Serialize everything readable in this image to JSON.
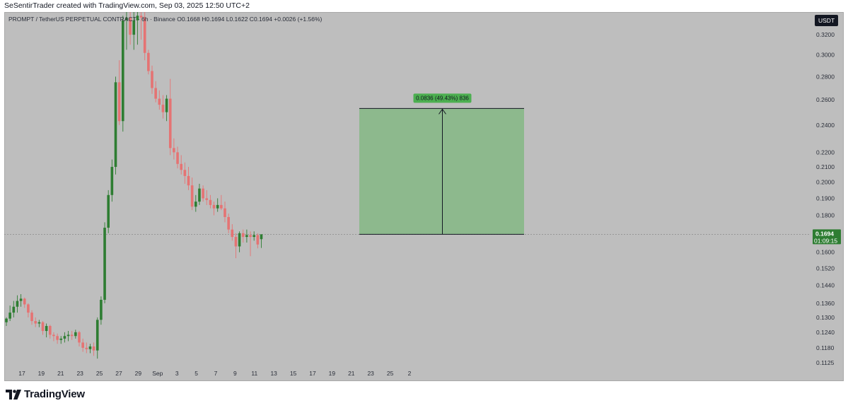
{
  "header": {
    "credit": "SeSentirTrader created with TradingView.com, Sep 03, 2025 12:50 UTC+2"
  },
  "legend": {
    "symbol": "PROMPT / TetherUS PERPETUAL CONTRACT · 6h · Binance",
    "ohlc": "O0.1668 H0.1694 L0.1622 C0.1694 +0.0026 (+1.56%)"
  },
  "currency_badge": "USDT",
  "price_tag": {
    "price": "0.1694",
    "countdown": "01:09:15"
  },
  "measure_label": "0.0836 (49.43%) 836",
  "footer": {
    "brand": "TradingView"
  },
  "colors": {
    "background": "#bebebe",
    "up_candle": "#2e7d32",
    "down_candle": "#e57373",
    "target_zone": "#8db98d",
    "price_tag": "#2e7d32"
  },
  "chart_data": {
    "type": "candlestick",
    "symbol": "PROMPT / TetherUS PERPETUAL CONTRACT",
    "timeframe": "6h",
    "exchange": "Binance",
    "y_scale": "log",
    "ylim": [
      0.1105,
      0.344
    ],
    "y_ticks": [
      0.32,
      0.3,
      0.28,
      0.26,
      0.24,
      0.22,
      0.21,
      0.2,
      0.19,
      0.18,
      0.17,
      0.16,
      0.152,
      0.144,
      0.136,
      0.13,
      0.124,
      0.118,
      0.1125
    ],
    "y_tick_labels": [
      "0.3200",
      "0.3000",
      "0.2800",
      "0.2600",
      "0.2400",
      "0.2200",
      "0.2100",
      "0.2000",
      "0.1900",
      "0.1800",
      "0.1700",
      "0.1600",
      "0.1520",
      "0.1440",
      "0.1360",
      "0.1300",
      "0.1240",
      "0.1180",
      "0.1125"
    ],
    "x_ticks": [
      "17",
      "19",
      "21",
      "23",
      "25",
      "27",
      "29",
      "Sep",
      "3",
      "5",
      "7",
      "9",
      "11",
      "13",
      "15",
      "17",
      "19",
      "21",
      "23",
      "25",
      "2"
    ],
    "last_price": 0.1694,
    "candles": [
      [
        0.128,
        0.13,
        0.1265,
        0.1295
      ],
      [
        0.1295,
        0.135,
        0.1285,
        0.132
      ],
      [
        0.132,
        0.137,
        0.13,
        0.1345
      ],
      [
        0.1345,
        0.1395,
        0.132,
        0.137
      ],
      [
        0.137,
        0.14,
        0.1345,
        0.138
      ],
      [
        0.138,
        0.1385,
        0.134,
        0.1355
      ],
      [
        0.1355,
        0.136,
        0.13,
        0.132
      ],
      [
        0.132,
        0.133,
        0.127,
        0.1285
      ],
      [
        0.1285,
        0.13,
        0.126,
        0.1275
      ],
      [
        0.1275,
        0.129,
        0.126,
        0.128
      ],
      [
        0.128,
        0.1285,
        0.123,
        0.1245
      ],
      [
        0.1245,
        0.1275,
        0.122,
        0.1265
      ],
      [
        0.1265,
        0.127,
        0.1215,
        0.123
      ],
      [
        0.123,
        0.124,
        0.1205,
        0.1225
      ],
      [
        0.1225,
        0.1235,
        0.1195,
        0.121
      ],
      [
        0.121,
        0.1225,
        0.1195,
        0.1215
      ],
      [
        0.1215,
        0.124,
        0.12,
        0.1225
      ],
      [
        0.1225,
        0.1245,
        0.1205,
        0.123
      ],
      [
        0.123,
        0.1245,
        0.121,
        0.1225
      ],
      [
        0.1225,
        0.125,
        0.1215,
        0.124
      ],
      [
        0.124,
        0.1245,
        0.1185,
        0.12
      ],
      [
        0.12,
        0.1215,
        0.1165,
        0.118
      ],
      [
        0.118,
        0.12,
        0.116,
        0.1175
      ],
      [
        0.1175,
        0.1195,
        0.116,
        0.1185
      ],
      [
        0.1185,
        0.12,
        0.115,
        0.117
      ],
      [
        0.117,
        0.13,
        0.114,
        0.129
      ],
      [
        0.129,
        0.139,
        0.127,
        0.1375
      ],
      [
        0.1375,
        0.176,
        0.136,
        0.173
      ],
      [
        0.173,
        0.195,
        0.17,
        0.192
      ],
      [
        0.192,
        0.215,
        0.188,
        0.21
      ],
      [
        0.21,
        0.28,
        0.205,
        0.275
      ],
      [
        0.275,
        0.295,
        0.24,
        0.243
      ],
      [
        0.243,
        0.34,
        0.235,
        0.335
      ],
      [
        0.335,
        0.344,
        0.305,
        0.338
      ],
      [
        0.338,
        0.344,
        0.31,
        0.32
      ],
      [
        0.32,
        0.344,
        0.305,
        0.335
      ],
      [
        0.335,
        0.344,
        0.31,
        0.34
      ],
      [
        0.34,
        0.344,
        0.315,
        0.338
      ],
      [
        0.338,
        0.344,
        0.295,
        0.302
      ],
      [
        0.302,
        0.305,
        0.282,
        0.285
      ],
      [
        0.285,
        0.29,
        0.265,
        0.27
      ],
      [
        0.27,
        0.276,
        0.258,
        0.261
      ],
      [
        0.261,
        0.268,
        0.252,
        0.256
      ],
      [
        0.256,
        0.264,
        0.245,
        0.25
      ],
      [
        0.25,
        0.264,
        0.243,
        0.261
      ],
      [
        0.261,
        0.278,
        0.218,
        0.223
      ],
      [
        0.223,
        0.23,
        0.215,
        0.22
      ],
      [
        0.22,
        0.224,
        0.209,
        0.212
      ],
      [
        0.212,
        0.218,
        0.205,
        0.208
      ],
      [
        0.208,
        0.213,
        0.199,
        0.204
      ],
      [
        0.204,
        0.21,
        0.195,
        0.198
      ],
      [
        0.198,
        0.203,
        0.183,
        0.185
      ],
      [
        0.185,
        0.192,
        0.182,
        0.188
      ],
      [
        0.188,
        0.199,
        0.186,
        0.196
      ],
      [
        0.196,
        0.198,
        0.188,
        0.19
      ],
      [
        0.19,
        0.195,
        0.186,
        0.189
      ],
      [
        0.189,
        0.192,
        0.184,
        0.186
      ],
      [
        0.186,
        0.188,
        0.18,
        0.184
      ],
      [
        0.184,
        0.19,
        0.182,
        0.186
      ],
      [
        0.186,
        0.192,
        0.183,
        0.184
      ],
      [
        0.184,
        0.188,
        0.176,
        0.179
      ],
      [
        0.179,
        0.181,
        0.17,
        0.172
      ],
      [
        0.172,
        0.175,
        0.166,
        0.168
      ],
      [
        0.168,
        0.17,
        0.157,
        0.163
      ],
      [
        0.163,
        0.171,
        0.16,
        0.17
      ],
      [
        0.17,
        0.172,
        0.165,
        0.168
      ],
      [
        0.168,
        0.172,
        0.165,
        0.169
      ],
      [
        0.169,
        0.171,
        0.158,
        0.168
      ],
      [
        0.168,
        0.171,
        0.166,
        0.169
      ],
      [
        0.169,
        0.17,
        0.162,
        0.164
      ],
      [
        0.1668,
        0.1694,
        0.1622,
        0.1694
      ]
    ],
    "measure": {
      "start_price": 0.1694,
      "end_price": 0.253,
      "change": "0.0836",
      "percent": "49.43%",
      "ticks": "836"
    }
  }
}
